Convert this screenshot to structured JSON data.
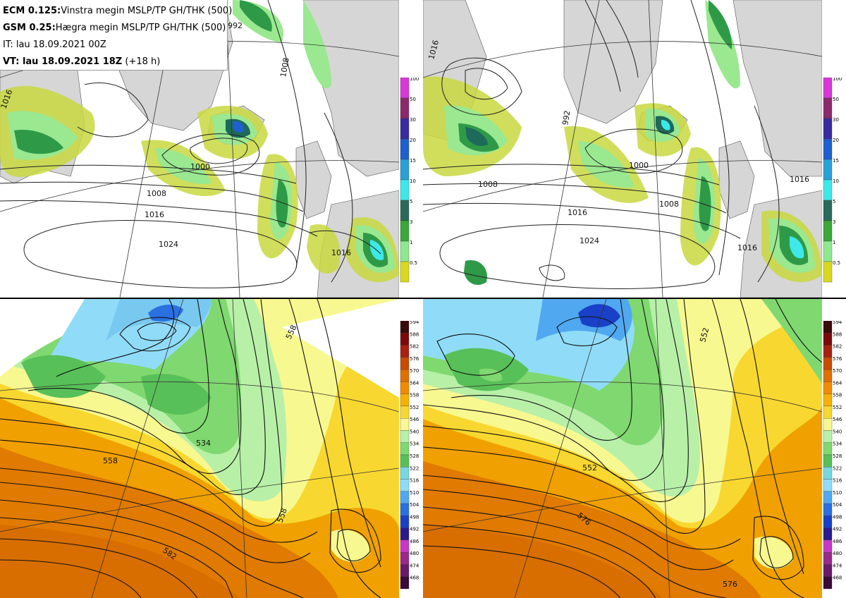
{
  "header": {
    "line1_bold": "ECM 0.125:",
    "line1_text": "Vinstra megin MSLP/TP GH/THK (500)",
    "line2_bold": "GSM 0.25:",
    "line2_text": "Hægra megin MSLP/TP GH/THK (500)",
    "line3_text": "IT: lau 18.09.2021 00Z",
    "line4_bold": "VT: lau 18.09.2021 18Z",
    "line4_text": "(+18 h)"
  },
  "precip_colorbar": {
    "levels": [
      "100",
      "50",
      "30",
      "20",
      "15",
      "10",
      "5",
      "3",
      "1",
      "0.5"
    ],
    "colors": [
      "#d838d8",
      "#8a2a6a",
      "#3a2aa0",
      "#1f5fd0",
      "#2aa0d8",
      "#3ee8e8",
      "#2a6a5a",
      "#3aa83a",
      "#8ee88e",
      "#d8d820"
    ]
  },
  "thickness_colorbar": {
    "levels": [
      "594",
      "588",
      "582",
      "576",
      "570",
      "564",
      "558",
      "552",
      "546",
      "540",
      "534",
      "528",
      "522",
      "516",
      "510",
      "504",
      "498",
      "492",
      "486",
      "480",
      "474",
      "468"
    ],
    "colors": [
      "#3a0a0a",
      "#7a0a0a",
      "#a82010",
      "#c84c00",
      "#e07000",
      "#f08c00",
      "#f8b000",
      "#f8d830",
      "#f8f890",
      "#b8f0a8",
      "#80d870",
      "#58c058",
      "#78d8e0",
      "#90dcf8",
      "#50a8f0",
      "#2a70e0",
      "#1a40c8",
      "#2a1a90",
      "#c838c8",
      "#9a2a8a",
      "#6a1a6a",
      "#3a0a3a"
    ]
  },
  "map_labels": {
    "ecm_mslp": [
      "1000",
      "1008",
      "1016",
      "1024",
      "992",
      "1008",
      "1016",
      "1016"
    ],
    "gsm_mslp": [
      "1000",
      "1008",
      "1016",
      "1024",
      "992",
      "1008",
      "1016",
      "1016",
      "1016"
    ],
    "ecm_gh": [
      "558",
      "534",
      "558",
      "558",
      "582"
    ],
    "gsm_gh": [
      "552",
      "552",
      "576",
      "576"
    ]
  },
  "colors": {
    "land": "#d6d6d6",
    "sea": "#ffffff",
    "precip_light": "#c8d840",
    "precip_mid": "#9ae890",
    "precip_strong": "#2e9a48",
    "precip_heavy": "#1d6a5a"
  }
}
